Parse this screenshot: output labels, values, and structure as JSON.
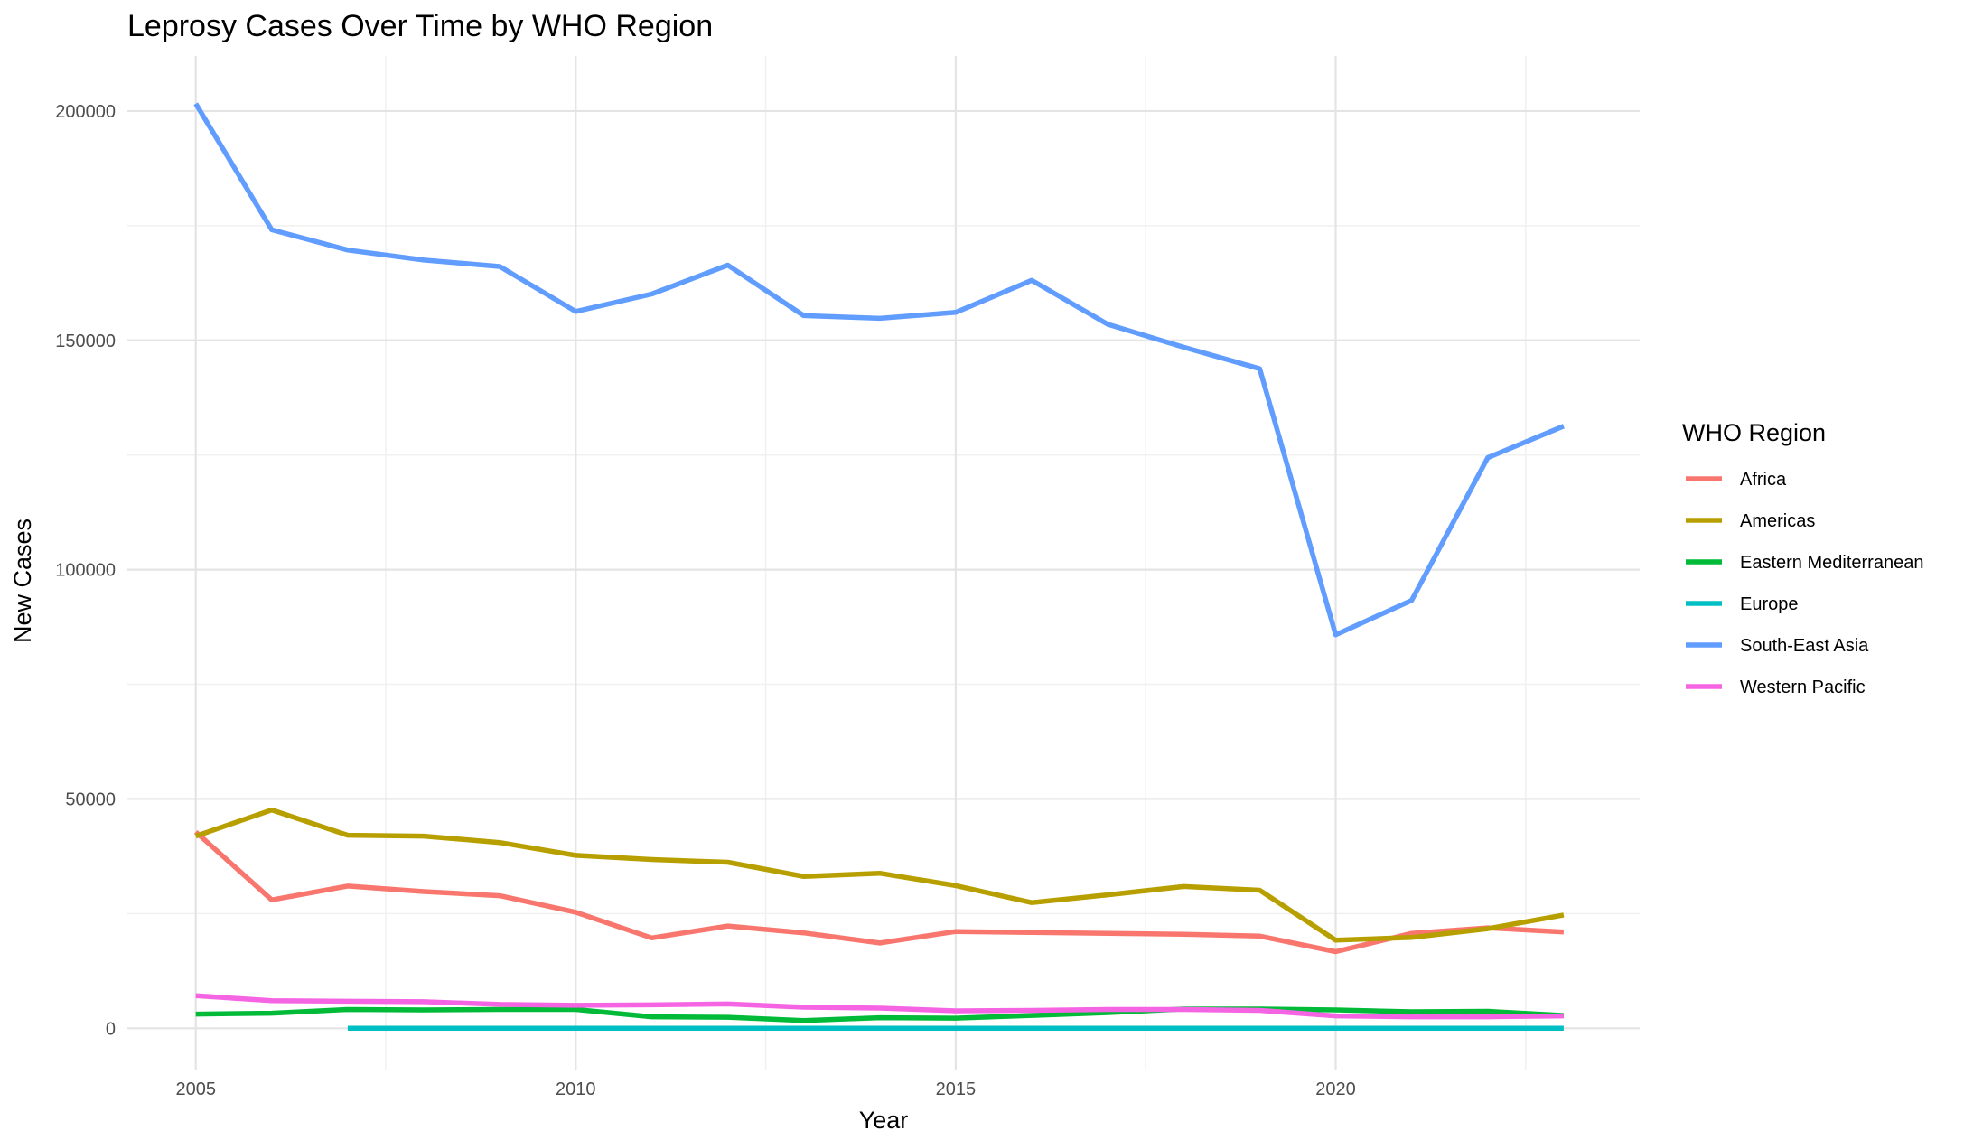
{
  "chart_data": {
    "type": "line",
    "title": "Leprosy Cases Over Time by WHO Region",
    "xlabel": "Year",
    "ylabel": "New Cases",
    "xlim": [
      2004.1,
      2024.0
    ],
    "ylim": [
      -9000,
      212000
    ],
    "x_ticks": [
      2005,
      2010,
      2015,
      2020
    ],
    "x_tick_labels": [
      "2005",
      "2010",
      "2015",
      "2020"
    ],
    "y_ticks": [
      0,
      50000,
      100000,
      150000,
      200000
    ],
    "y_tick_labels": [
      "0",
      "50000",
      "100000",
      "150000",
      "200000"
    ],
    "grid": true,
    "legend_title": "WHO Region",
    "legend_position": "right",
    "series": [
      {
        "name": "Africa",
        "color": "#F8766D",
        "x": [
          2005,
          2006,
          2007,
          2008,
          2009,
          2010,
          2011,
          2012,
          2013,
          2014,
          2015,
          2016,
          2017,
          2018,
          2019,
          2020,
          2021,
          2022,
          2023
        ],
        "values": [
          42800,
          28000,
          31000,
          29800,
          28900,
          25300,
          19700,
          22300,
          20800,
          18600,
          21100,
          20900,
          20700,
          20500,
          20100,
          16700,
          20700,
          21900,
          21000
        ]
      },
      {
        "name": "Americas",
        "color": "#B79F00",
        "x": [
          2005,
          2006,
          2007,
          2008,
          2009,
          2010,
          2011,
          2012,
          2013,
          2014,
          2015,
          2016,
          2017,
          2018,
          2019,
          2020,
          2021,
          2022,
          2023
        ],
        "values": [
          41900,
          47600,
          42100,
          41900,
          40500,
          37700,
          36800,
          36200,
          33100,
          33800,
          31100,
          27400,
          29100,
          30900,
          30100,
          19200,
          19800,
          21700,
          24700
        ]
      },
      {
        "name": "Eastern Mediterranean",
        "color": "#00BA38",
        "x": [
          2005,
          2006,
          2007,
          2008,
          2009,
          2010,
          2011,
          2012,
          2013,
          2014,
          2015,
          2016,
          2017,
          2018,
          2019,
          2020,
          2021,
          2022,
          2023
        ],
        "values": [
          3100,
          3300,
          4100,
          4000,
          4100,
          4100,
          2500,
          2400,
          1700,
          2300,
          2200,
          2800,
          3400,
          4200,
          4200,
          4000,
          3600,
          3700,
          2800
        ]
      },
      {
        "name": "Europe",
        "color": "#00BFC4",
        "x": [
          2007,
          2008,
          2009,
          2010,
          2011,
          2012,
          2013,
          2014,
          2015,
          2016,
          2017,
          2018,
          2019,
          2020,
          2021,
          2022,
          2023
        ],
        "values": [
          0,
          0,
          0,
          0,
          0,
          0,
          0,
          0,
          0,
          0,
          0,
          0,
          0,
          0,
          0,
          0,
          0
        ]
      },
      {
        "name": "South-East Asia",
        "color": "#619CFF",
        "x": [
          2005,
          2006,
          2007,
          2008,
          2009,
          2010,
          2011,
          2012,
          2013,
          2014,
          2015,
          2016,
          2017,
          2018,
          2019,
          2020,
          2021,
          2022,
          2023
        ],
        "values": [
          201600,
          174100,
          169700,
          167500,
          166100,
          156300,
          160100,
          166400,
          155400,
          154800,
          156100,
          163100,
          153500,
          148500,
          143800,
          85800,
          93300,
          124400,
          131300
        ]
      },
      {
        "name": "Western Pacific",
        "color": "#F564E3",
        "x": [
          2005,
          2006,
          2007,
          2008,
          2009,
          2010,
          2011,
          2012,
          2013,
          2014,
          2015,
          2016,
          2017,
          2018,
          2019,
          2020,
          2021,
          2022,
          2023
        ],
        "values": [
          7100,
          6000,
          5900,
          5800,
          5200,
          5000,
          5100,
          5300,
          4600,
          4400,
          3800,
          3900,
          4100,
          4100,
          3900,
          2700,
          2500,
          2500,
          2700
        ]
      }
    ]
  }
}
